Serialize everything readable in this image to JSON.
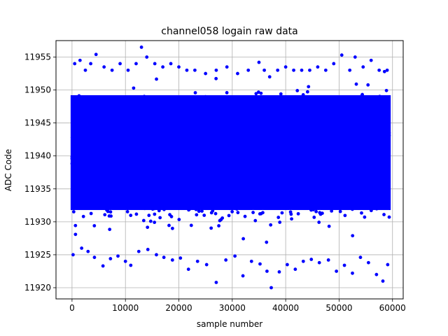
{
  "chart_data": {
    "type": "scatter",
    "title": "channel058 logain raw data",
    "xlabel": "sample number",
    "ylabel": "ADC Code",
    "xlim": [
      -3000,
      62000
    ],
    "ylim": [
      11918.3,
      11957.5
    ],
    "xticks": [
      0,
      10000,
      20000,
      30000,
      40000,
      50000,
      60000
    ],
    "yticks": [
      11920,
      11925,
      11930,
      11935,
      11940,
      11945,
      11950,
      11955
    ],
    "grid": true,
    "marker_color": "#0000ff",
    "core_band": {
      "x": [
        0,
        59400
      ],
      "y": [
        11932,
        11949
      ]
    },
    "series": [
      {
        "x": [
          500,
          1500,
          2500,
          3500,
          4500,
          6000,
          7500,
          9000,
          10500,
          12000,
          13000,
          14000,
          15500,
          17000,
          18500,
          20000,
          21500,
          23000,
          25000,
          27000,
          29000,
          31000,
          33000,
          35000,
          36000,
          37000,
          38500,
          40000,
          41500,
          43000,
          44500,
          46000,
          47500,
          49000,
          50500,
          52000,
          53000,
          54500,
          56000,
          57500,
          58500,
          59000
        ],
        "y": [
          11954,
          11954.5,
          11953,
          11954,
          11955.4,
          11953.5,
          11953,
          11954,
          11953,
          11954,
          11956.5,
          11955,
          11954,
          11953.5,
          11954,
          11953.5,
          11953,
          11953,
          11952.5,
          11953,
          11953.5,
          11952.5,
          11953,
          11954.2,
          11953,
          11952,
          11953,
          11953.5,
          11953,
          11953,
          11953,
          11953.5,
          11953,
          11954,
          11955.3,
          11953,
          11955,
          11953.5,
          11954.5,
          11953,
          11952.8,
          11953
        ]
      },
      {
        "x": [
          200,
          1800,
          3000,
          4200,
          5800,
          7200,
          8600,
          10000,
          11000,
          12500,
          14200,
          15800,
          17200,
          18800,
          20300,
          21800,
          23500,
          25200,
          27000,
          28800,
          30500,
          32000,
          33600,
          35200,
          36500,
          37300,
          38800,
          40300,
          41800,
          43300,
          44800,
          46300,
          48000,
          49500,
          51000,
          52500,
          54000,
          55500,
          57000,
          58200,
          59100
        ],
        "y": [
          11925,
          11926,
          11925.5,
          11924.6,
          11923.3,
          11924.4,
          11924.8,
          11924,
          11923.4,
          11925.5,
          11925.8,
          11925,
          11924.6,
          11924.2,
          11924.5,
          11922.8,
          11924,
          11923.5,
          11920.8,
          11924.2,
          11924.8,
          11921.8,
          11924,
          11923.6,
          11922.5,
          11920,
          11922.4,
          11923.5,
          11922.8,
          11924,
          11924.3,
          11923.8,
          11924.2,
          11922.5,
          11923.4,
          11922.2,
          11924.6,
          11923.8,
          11922,
          11921,
          11923.5
        ]
      }
    ]
  }
}
